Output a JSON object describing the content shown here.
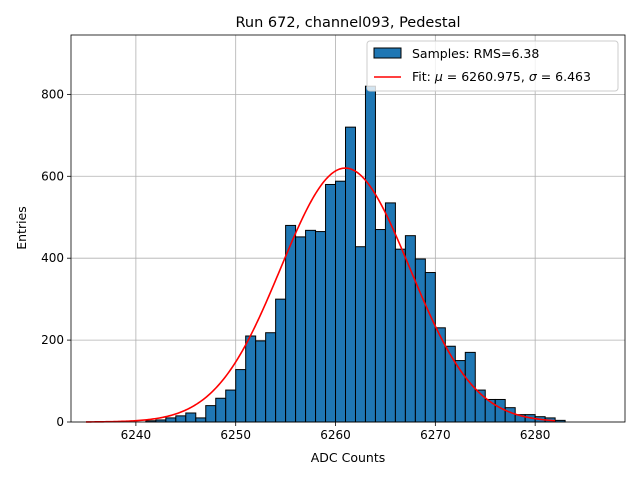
{
  "chart_data": {
    "type": "histogram",
    "title": "Run 672, channel093, Pedestal",
    "xlabel": "ADC Counts",
    "ylabel": "Entries",
    "xlim": [
      6233.5,
      6289.0
    ],
    "ylim": [
      0,
      945
    ],
    "xticks": [
      6240,
      6250,
      6260,
      6270,
      6280
    ],
    "yticks": [
      0,
      200,
      400,
      600,
      800
    ],
    "grid": true,
    "bin_width": 1,
    "bin_start": 6241,
    "counts": [
      3,
      5,
      10,
      15,
      22,
      10,
      40,
      58,
      78,
      128,
      210,
      198,
      218,
      300,
      480,
      452,
      468,
      465,
      580,
      588,
      720,
      428,
      820,
      470,
      535,
      422,
      455,
      398,
      365,
      230,
      185,
      150,
      170,
      78,
      55,
      55,
      35,
      18,
      18,
      13,
      10,
      4
    ],
    "fit": {
      "label_plain": "Fit: μ = 6260.975, σ = 6.463",
      "mu": 6260.975,
      "sigma": 6.463,
      "amplitude": 620,
      "x_range": [
        6235,
        6282
      ]
    },
    "legend": {
      "location": "upper right",
      "samples_label": "Samples: RMS=6.38",
      "fit_prefix": "Fit: ",
      "mu_symbol": "μ",
      "mu_value": " = 6260.975, ",
      "sigma_symbol": "σ",
      "sigma_value": " = 6.463"
    },
    "colors": {
      "bars": "#1f77b4",
      "fit_line": "#ff0000"
    }
  }
}
